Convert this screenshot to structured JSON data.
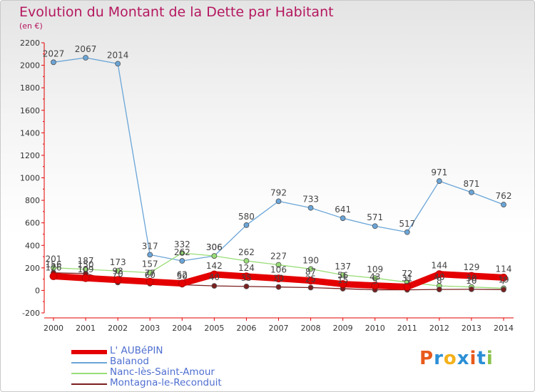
{
  "title": "Evolution du Montant de la Dette par Habitant",
  "subtitle": "(en €)",
  "logo": {
    "text": "Proxiti",
    "colors": [
      "#e85a1b",
      "#2b8fd6",
      "#f3b11a",
      "#2b8fd6",
      "#e85a1b",
      "#2b8fd6",
      "#8bc34a"
    ]
  },
  "chart_data": {
    "type": "line",
    "x": [
      "2000",
      "2001",
      "2002",
      "2003",
      "2004",
      "2005",
      "2006",
      "2007",
      "2008",
      "2009",
      "2010",
      "2011",
      "2012",
      "2013",
      "2014"
    ],
    "ylim": [
      -200,
      2200
    ],
    "yticks": [
      "-200",
      "0",
      "200",
      "400",
      "600",
      "800",
      "1000",
      "1200",
      "1400",
      "1600",
      "1800",
      "2000",
      "2200"
    ],
    "grid": false,
    "legend_position": "bottom-left",
    "series": [
      {
        "name": "L' AUBéPIN",
        "color": "#e40000",
        "values": [
          126,
          109,
          93,
          77,
          62,
          142,
          124,
          106,
          87,
          56,
          43,
          31,
          144,
          129,
          114
        ],
        "labels": [
          "126",
          "109",
          "93",
          "77",
          "62",
          "142",
          "124",
          "106",
          "87",
          "56",
          "43",
          "31",
          "144",
          "129",
          "114"
        ]
      },
      {
        "name": "Balanod",
        "color": "#6aa5d8",
        "values": [
          2027,
          2067,
          2014,
          317,
          262,
          306,
          580,
          792,
          733,
          641,
          571,
          517,
          971,
          871,
          762
        ],
        "labels": [
          "2027",
          "2067",
          "2014",
          "317",
          "262",
          "306",
          "580",
          "792",
          "733",
          "641",
          "571",
          "517",
          "971",
          "871",
          "762"
        ]
      },
      {
        "name": "Nanc-lès-Saint-Amour",
        "color": "#99dd77",
        "values": [
          201,
          187,
          173,
          157,
          332,
          306,
          262,
          227,
          190,
          137,
          109,
          72,
          40,
          30,
          19
        ],
        "labels": [
          "201",
          "187",
          "173",
          "157",
          "332",
          "306",
          "262",
          "227",
          "190",
          "137",
          "109",
          "72",
          "40",
          "30",
          "19"
        ]
      },
      {
        "name": "Montagna-le-Reconduit",
        "color": "#7a1f1f",
        "values": [
          156,
          150,
          70,
          60,
          50,
          40,
          35,
          30,
          25,
          15,
          5,
          5,
          8,
          10,
          7
        ],
        "labels": [
          "156",
          "150",
          "70",
          "60",
          "50",
          "40",
          "35",
          "30",
          "25",
          "15",
          "5",
          "5",
          "8",
          "10",
          "7"
        ]
      }
    ]
  }
}
